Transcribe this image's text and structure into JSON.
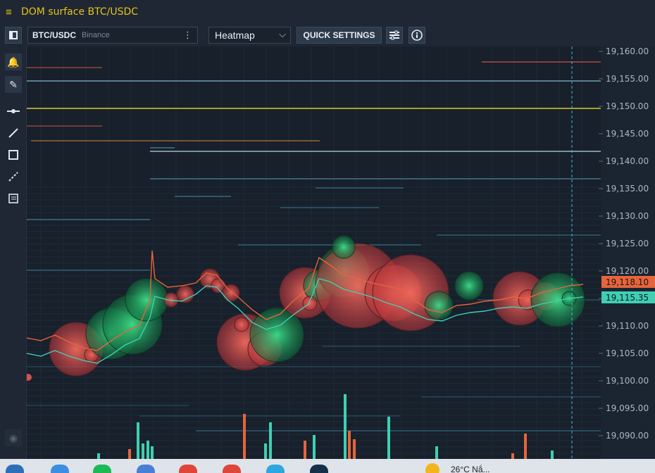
{
  "window": {
    "title": "DOM surface BTC/USDC"
  },
  "toolbar": {
    "symbol": "BTC/USDC",
    "exchange": "Binance",
    "view_mode": "Heatmap",
    "quick_settings_label": "QUICK SETTINGS"
  },
  "price_axis": {
    "ticks": [
      "19,160.00",
      "19,155.00",
      "19,150.00",
      "19,145.00",
      "19,140.00",
      "19,135.00",
      "19,130.00",
      "19,125.00",
      "19,120.00",
      "19,115.00",
      "19,110.00",
      "19,105.00",
      "19,100.00",
      "19,095.00",
      "19,090.00"
    ],
    "ask_price": "19,118.10",
    "bid_price": "19,115.35"
  },
  "taskbar": {
    "weather": "26°C  Nắ..."
  },
  "colors": {
    "accent": "#e9c21b",
    "ask": "#e8643a",
    "bid": "#3fcfb3",
    "background": "#1b2431"
  }
}
